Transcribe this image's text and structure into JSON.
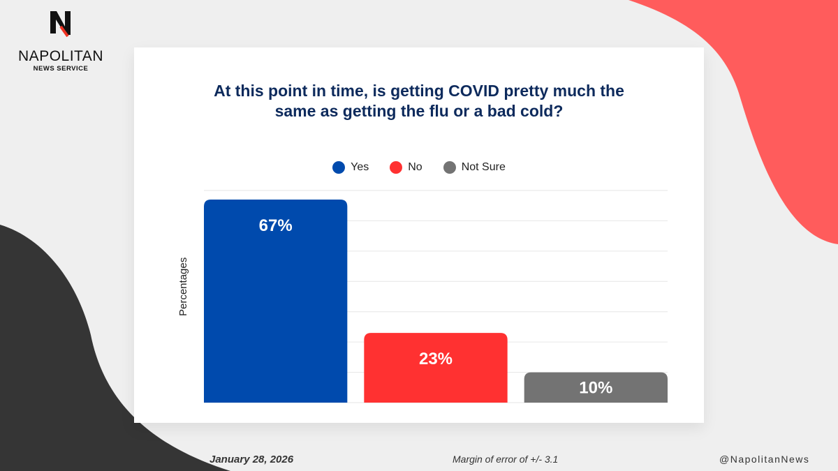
{
  "logo": {
    "name": "NAPOLITAN",
    "sub": "NEWS SERVICE"
  },
  "colors": {
    "yes": "#004aad",
    "no": "#ff3131",
    "not_sure": "#737373"
  },
  "chart_data": {
    "type": "bar",
    "title": "At this point in time, is getting COVID pretty much the same as getting the flu or a bad cold?",
    "categories": [
      "Yes",
      "No",
      "Not Sure"
    ],
    "values": [
      67,
      23,
      10
    ],
    "data_labels": [
      "67%",
      "23%",
      "10%"
    ],
    "ylabel": "Percentages",
    "xlabel": "",
    "ylim": [
      0,
      70
    ],
    "grid": true,
    "legend": "top-center"
  },
  "footer": {
    "date": "January 28, 2026",
    "margin": "Margin of error of +/- 3.1",
    "handle": "@NapolitanNews"
  }
}
